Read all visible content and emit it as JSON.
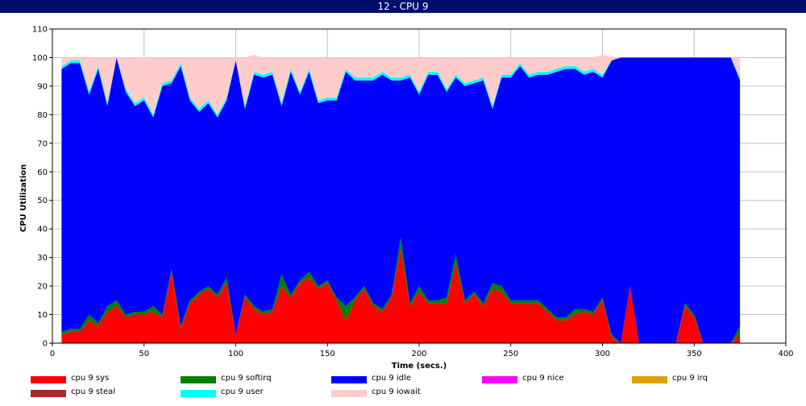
{
  "window_title": "12 - CPU 9",
  "chart_data": {
    "type": "area",
    "title": "",
    "xlabel": "Time (secs.)",
    "ylabel": "CPU Utilization",
    "xlim": [
      0,
      400
    ],
    "ylim": [
      0,
      110
    ],
    "xticks": [
      0,
      50,
      100,
      150,
      200,
      250,
      300,
      350,
      400
    ],
    "yticks": [
      0,
      10,
      20,
      30,
      40,
      50,
      60,
      70,
      80,
      90,
      100,
      110
    ],
    "grid": true,
    "stacked": true,
    "legend_position": "bottom",
    "x": [
      5,
      10,
      15,
      20,
      25,
      30,
      35,
      40,
      45,
      50,
      55,
      60,
      65,
      70,
      75,
      80,
      85,
      90,
      95,
      100,
      105,
      110,
      115,
      120,
      125,
      130,
      135,
      140,
      145,
      150,
      155,
      160,
      165,
      170,
      175,
      180,
      185,
      190,
      195,
      200,
      205,
      210,
      215,
      220,
      225,
      230,
      235,
      240,
      245,
      250,
      255,
      260,
      265,
      270,
      275,
      280,
      285,
      290,
      295,
      300,
      305,
      310,
      315,
      320,
      325,
      330,
      335,
      340,
      345,
      350,
      355,
      360,
      365,
      370,
      375
    ],
    "series": [
      {
        "name": "cpu 9 sys",
        "color": "#ff0000",
        "values": [
          3,
          4,
          4,
          8,
          6,
          11,
          13,
          9,
          10,
          10,
          11,
          9,
          25,
          5,
          14,
          17,
          19,
          16,
          21,
          3,
          16,
          12,
          10,
          11,
          20,
          16,
          21,
          23,
          19,
          21,
          15,
          8,
          15,
          19,
          13,
          11,
          16,
          33,
          13,
          18,
          14,
          14,
          14,
          28,
          14,
          17,
          13,
          19,
          18,
          14,
          14,
          14,
          14,
          11,
          8,
          8,
          10,
          11,
          10,
          15,
          2,
          0,
          20,
          0,
          0,
          0,
          0,
          0,
          13,
          9,
          0,
          0,
          0,
          0,
          3
        ]
      },
      {
        "name": "cpu 9 softirq",
        "color": "#008000",
        "values": [
          1,
          1,
          1,
          2,
          1,
          2,
          2,
          1,
          1,
          1,
          2,
          1,
          1,
          1,
          1,
          1,
          1,
          1,
          2,
          0,
          1,
          1,
          1,
          1,
          4,
          1,
          1,
          2,
          1,
          1,
          1,
          5,
          1,
          1,
          1,
          1,
          1,
          4,
          1,
          2,
          1,
          1,
          2,
          3,
          1,
          1,
          1,
          2,
          2,
          1,
          1,
          1,
          1,
          1,
          1,
          1,
          2,
          1,
          1,
          1,
          1,
          0,
          0,
          0,
          0,
          0,
          0,
          0,
          1,
          1,
          0,
          0,
          0,
          0,
          3
        ]
      },
      {
        "name": "cpu 9 idle",
        "color": "#0000ff",
        "values": [
          92,
          93,
          93,
          77,
          89,
          70,
          85,
          78,
          72,
          74,
          66,
          80,
          65,
          91,
          70,
          63,
          64,
          62,
          62,
          96,
          65,
          81,
          82,
          82,
          59,
          78,
          65,
          70,
          64,
          63,
          69,
          82,
          76,
          72,
          78,
          82,
          75,
          55,
          79,
          67,
          79,
          79,
          72,
          62,
          75,
          73,
          78,
          61,
          73,
          78,
          82,
          78,
          79,
          82,
          86,
          87,
          84,
          82,
          84,
          77,
          96,
          100,
          80,
          100,
          100,
          100,
          100,
          100,
          86,
          90,
          100,
          100,
          100,
          100,
          86
        ]
      },
      {
        "name": "cpu 9 nice",
        "color": "#ff00ff",
        "values": [
          0,
          0,
          0,
          0,
          0,
          0,
          0,
          0,
          0,
          0,
          0,
          0,
          0,
          0,
          0,
          0,
          0,
          0,
          0,
          0,
          0,
          0,
          0,
          0,
          0,
          0,
          0,
          0,
          0,
          0,
          0,
          0,
          0,
          0,
          0,
          0,
          0,
          0,
          0,
          0,
          0,
          0,
          0,
          0,
          0,
          0,
          0,
          0,
          0,
          0,
          0,
          0,
          0,
          0,
          0,
          0,
          0,
          0,
          0,
          0,
          0,
          0,
          0,
          0,
          0,
          0,
          0,
          0,
          0,
          0,
          0,
          0,
          0,
          0,
          0
        ]
      },
      {
        "name": "cpu 9 irq",
        "color": "#e0a000",
        "values": [
          0,
          0,
          0,
          0,
          0,
          0,
          0,
          0,
          0,
          0,
          0,
          0,
          0,
          0,
          0,
          0,
          0,
          0,
          0,
          0,
          0,
          0,
          0,
          0,
          0,
          0,
          0,
          0,
          0,
          0,
          0,
          0,
          0,
          0,
          0,
          0,
          0,
          0,
          0,
          0,
          0,
          0,
          0,
          0,
          0,
          0,
          0,
          0,
          0,
          0,
          0,
          0,
          0,
          0,
          0,
          0,
          0,
          0,
          0,
          0,
          0,
          0,
          0,
          0,
          0,
          0,
          0,
          0,
          0,
          0,
          0,
          0,
          0,
          0,
          0
        ]
      },
      {
        "name": "cpu 9 steal",
        "color": "#a52a2a",
        "values": [
          0,
          0,
          0,
          0,
          0,
          0,
          0,
          0,
          0,
          0,
          0,
          0,
          0,
          0,
          0,
          0,
          0,
          0,
          0,
          0,
          0,
          0,
          0,
          0,
          0,
          0,
          0,
          0,
          0,
          0,
          0,
          0,
          0,
          0,
          0,
          0,
          0,
          0,
          0,
          0,
          0,
          0,
          0,
          0,
          0,
          0,
          0,
          0,
          0,
          0,
          0,
          0,
          0,
          0,
          0,
          0,
          0,
          0,
          0,
          0,
          0,
          0,
          0,
          0,
          0,
          0,
          0,
          0,
          0,
          0,
          0,
          0,
          0,
          0,
          0
        ]
      },
      {
        "name": "cpu 9 user",
        "color": "#00ffff",
        "values": [
          1,
          1,
          1,
          1,
          1,
          1,
          0,
          1,
          1,
          1,
          1,
          1,
          1,
          1,
          1,
          1,
          1,
          1,
          1,
          0,
          1,
          1,
          1,
          1,
          1,
          1,
          1,
          1,
          1,
          1,
          1,
          1,
          1,
          1,
          1,
          1,
          1,
          1,
          1,
          1,
          1,
          1,
          1,
          1,
          1,
          1,
          1,
          1,
          1,
          1,
          1,
          1,
          1,
          1,
          1,
          1,
          1,
          1,
          1,
          1,
          0,
          0,
          0,
          0,
          0,
          0,
          0,
          0,
          0,
          0,
          0,
          0,
          0,
          0,
          1
        ]
      },
      {
        "name": "cpu 9 iowait",
        "color": "#ffcccc",
        "values": [
          3,
          1,
          1,
          12,
          3,
          16,
          0,
          11,
          16,
          14,
          20,
          9,
          8,
          2,
          14,
          18,
          15,
          20,
          14,
          1,
          17,
          6,
          6,
          5,
          16,
          4,
          12,
          4,
          15,
          14,
          14,
          4,
          7,
          7,
          7,
          5,
          7,
          7,
          6,
          12,
          5,
          5,
          11,
          6,
          9,
          8,
          7,
          17,
          6,
          6,
          2,
          6,
          5,
          5,
          4,
          3,
          3,
          5,
          4,
          7,
          1,
          0,
          0,
          0,
          0,
          0,
          0,
          0,
          0,
          0,
          0,
          0,
          0,
          0,
          7
        ]
      }
    ]
  }
}
